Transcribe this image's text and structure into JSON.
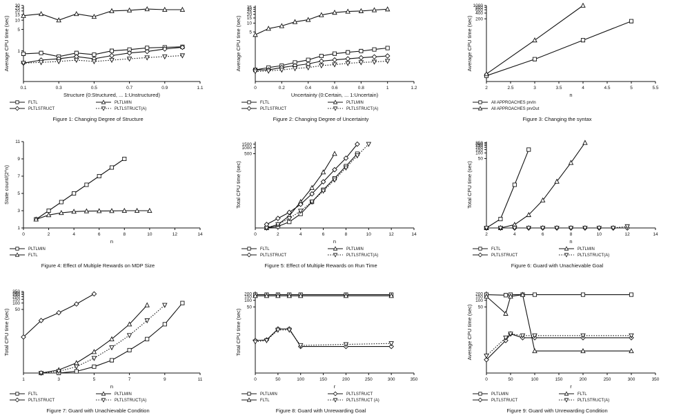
{
  "chart_data": [
    {
      "type": "line",
      "title": "Figure 1: Changing Degree of Structure",
      "xlabel": "Structure (0:Structured, ... 1:Unstructured)",
      "ylabel": "Average CPU time (sec)",
      "xlim": [
        0.1,
        1.1
      ],
      "xticks": [
        "0.1",
        "0.3",
        "0.5",
        "0.7",
        "0.9",
        "1.1"
      ],
      "yscale": "log",
      "ylim": [
        0.1,
        30
      ],
      "yticks": [
        "1",
        "5",
        "10",
        "15",
        "20",
        "25",
        "30"
      ],
      "x": [
        0.1,
        0.2,
        0.3,
        0.4,
        0.5,
        0.6,
        0.7,
        0.8,
        0.9,
        1.0
      ],
      "series": [
        {
          "name": "FLTL",
          "marker": "square",
          "dash": "solid",
          "values": [
            0.8,
            0.85,
            0.65,
            0.85,
            0.75,
            1.0,
            1.1,
            1.25,
            1.3,
            1.35
          ]
        },
        {
          "name": "PLTLMIN",
          "marker": "triangle-up",
          "dash": "solid",
          "values": [
            14,
            16,
            10,
            16,
            13,
            20,
            21,
            23,
            22,
            22
          ]
        },
        {
          "name": "PLTLSTRUCT",
          "marker": "diamond",
          "dash": "solid",
          "values": [
            0.4,
            0.5,
            0.55,
            0.65,
            0.55,
            0.7,
            0.85,
            0.95,
            1.15,
            1.3
          ]
        },
        {
          "name": "PLTLSTRUCT(A)",
          "marker": "triangle-down",
          "dash": "dotted",
          "values": [
            0.4,
            0.42,
            0.45,
            0.5,
            0.45,
            0.5,
            0.55,
            0.6,
            0.65,
            0.7
          ]
        }
      ],
      "legend_rows": [
        [
          "FLTL",
          "PLTLMIN"
        ],
        [
          "PLTLSTRUCT",
          "PLTLSTRUCT(A)"
        ]
      ]
    },
    {
      "type": "line",
      "title": "Figure 2: Changing Degree of Uncertainty",
      "xlabel": "Uncertainty (0:Certain, ... 1:Uncertain)",
      "ylabel": "Average CPU time (sec)",
      "xlim": [
        0,
        1.2
      ],
      "xticks": [
        "0",
        "0.2",
        "0.4",
        "0.6",
        "0.8",
        "1",
        "1.2"
      ],
      "yscale": "log",
      "ylim": [
        0.1,
        40
      ],
      "yticks": [
        "5",
        "10",
        "15",
        "20",
        "25",
        "30",
        "35"
      ],
      "x": [
        0,
        0.1,
        0.2,
        0.3,
        0.4,
        0.5,
        0.6,
        0.7,
        0.8,
        0.9,
        1.0
      ],
      "series": [
        {
          "name": "FLTL",
          "marker": "square",
          "dash": "solid",
          "values": [
            0.25,
            0.3,
            0.35,
            0.45,
            0.55,
            0.75,
            0.9,
            1.0,
            1.1,
            1.25,
            1.4
          ]
        },
        {
          "name": "PLTLMIN",
          "marker": "triangle-up",
          "dash": "solid",
          "values": [
            4,
            6.5,
            8,
            11,
            13,
            19,
            23,
            25,
            26,
            28,
            30
          ]
        },
        {
          "name": "PLTLSTRUCT",
          "marker": "diamond",
          "dash": "solid",
          "values": [
            0.25,
            0.25,
            0.3,
            0.35,
            0.4,
            0.5,
            0.55,
            0.6,
            0.65,
            0.7,
            0.75
          ]
        },
        {
          "name": "PLTLSTRUCT(A)",
          "marker": "triangle-down",
          "dash": "dotted",
          "values": [
            0.22,
            0.23,
            0.25,
            0.28,
            0.3,
            0.35,
            0.38,
            0.42,
            0.45,
            0.47,
            0.5
          ]
        }
      ],
      "legend_rows": [
        [
          "FLTL",
          "PLTLMIN"
        ],
        [
          "PLTLSTRUCT",
          "PLTLSTRUCT(A)"
        ]
      ]
    },
    {
      "type": "line",
      "title": "Figure 3: Changing the syntax",
      "xlabel": "n",
      "ylabel": "Average CPU time (sec)",
      "xlim": [
        2,
        5.5
      ],
      "xticks": [
        "2",
        "2.5",
        "3",
        "3.5",
        "4",
        "4.5",
        "5",
        "5.5"
      ],
      "yscale": "log",
      "ylim": [
        0.1,
        1000
      ],
      "yticks": [
        "200",
        "400",
        "600",
        "800",
        "1000"
      ],
      "x": [
        2,
        3,
        4,
        5
      ],
      "series": [
        {
          "name": "All APPROACHES prvIn",
          "marker": "square",
          "dash": "solid",
          "values": [
            0.2,
            1.5,
            15,
            150
          ]
        },
        {
          "name": "All APPROACHES prvOut",
          "marker": "triangle-up",
          "dash": "solid",
          "x": [
            2,
            3,
            4
          ],
          "values": [
            0.25,
            15,
            1000
          ]
        }
      ],
      "legend_rows": [
        [
          "All APPROACHES prvIn"
        ],
        [
          "All APPROACHES prvOut"
        ]
      ]
    },
    {
      "type": "line",
      "title": "Figure 4: Effect of Multiple Rewards on MDP Size",
      "xlabel": "n",
      "ylabel": "State count/(2^n)",
      "xlim": [
        0,
        14
      ],
      "xticks": [
        "0",
        "2",
        "4",
        "6",
        "8",
        "10",
        "12",
        "14"
      ],
      "ylim": [
        1,
        11
      ],
      "yticks": [
        "1",
        "3",
        "5",
        "7",
        "9",
        "11"
      ],
      "series": [
        {
          "name": "PLTLMIN",
          "marker": "square",
          "dash": "solid",
          "x": [
            1,
            2,
            3,
            4,
            5,
            6,
            7,
            8
          ],
          "values": [
            2,
            3,
            4,
            5,
            6,
            7,
            8,
            9
          ]
        },
        {
          "name": "FLTL",
          "marker": "triangle-up",
          "dash": "solid",
          "x": [
            1,
            2,
            3,
            4,
            5,
            6,
            7,
            8,
            9,
            10
          ],
          "values": [
            2,
            2.5,
            2.75,
            2.9,
            2.95,
            2.97,
            2.98,
            3,
            3,
            3
          ]
        }
      ],
      "legend_rows": [
        [
          "PLTLMIN"
        ],
        [
          "FLTL"
        ]
      ]
    },
    {
      "type": "line",
      "title": "Figure 5: Effect of Multiple Rewards on Run Time",
      "xlabel": "n",
      "ylabel": "Total CPU time (sec)",
      "xlim": [
        0,
        14
      ],
      "xticks": [
        "0",
        "2",
        "4",
        "6",
        "8",
        "10",
        "12",
        "14"
      ],
      "yscale": "log",
      "ylim": [
        0.1,
        2000
      ],
      "yticks": [
        "500",
        "1000",
        "1500"
      ],
      "series": [
        {
          "name": "FLTL",
          "marker": "square",
          "dash": "solid",
          "x": [
            1,
            2,
            3,
            4,
            5,
            6,
            7,
            8,
            9
          ],
          "values": [
            0.1,
            0.12,
            0.2,
            0.5,
            2,
            8,
            30,
            120,
            500
          ]
        },
        {
          "name": "PLTLMIN",
          "marker": "triangle-up",
          "dash": "solid",
          "x": [
            1,
            2,
            3,
            4,
            5,
            6,
            7
          ],
          "values": [
            0.1,
            0.15,
            0.4,
            2,
            10,
            60,
            500
          ]
        },
        {
          "name": "PLTLSTRUCT",
          "marker": "diamond",
          "dash": "solid",
          "x": [
            1,
            2,
            3,
            4,
            5,
            6,
            7,
            8,
            9
          ],
          "values": [
            0.15,
            0.3,
            0.6,
            1.5,
            5,
            20,
            80,
            300,
            1500
          ]
        },
        {
          "name": "PLTLSTRUCT(A)",
          "marker": "triangle-down",
          "dash": "dotted",
          "x": [
            1,
            2,
            3,
            4,
            5,
            6,
            7,
            8,
            9,
            10
          ],
          "values": [
            0.1,
            0.15,
            0.3,
            0.7,
            2,
            7,
            25,
            100,
            400,
            1500
          ]
        }
      ],
      "legend_rows": [
        [
          "FLTL",
          "PLTLMIN"
        ],
        [
          "PLTLSTRUCT",
          "PLTLSTRUCT(A)"
        ]
      ]
    },
    {
      "type": "line",
      "title": "Figure 6: Guard with Unachievable Goal",
      "xlabel": "n",
      "ylabel": "Total CPU time (sec)",
      "xlim": [
        2,
        14
      ],
      "xticks": [
        "2",
        "4",
        "6",
        "8",
        "10",
        "12",
        "14"
      ],
      "yscale": "log",
      "ylim": [
        0.01,
        400
      ],
      "yticks": [
        "50",
        "100",
        "150",
        "200",
        "250",
        "300",
        "350"
      ],
      "series": [
        {
          "name": "FLTL",
          "marker": "square",
          "dash": "solid",
          "x": [
            2,
            3,
            4,
            5
          ],
          "values": [
            0.01,
            0.03,
            2,
            150
          ]
        },
        {
          "name": "PLTLMIN",
          "marker": "triangle-up",
          "dash": "solid",
          "x": [
            2,
            3,
            4,
            5,
            6,
            7,
            8,
            9
          ],
          "values": [
            0.01,
            0.01,
            0.015,
            0.05,
            0.3,
            3,
            30,
            350
          ]
        },
        {
          "name": "PLTLSTRUCT",
          "marker": "diamond",
          "dash": "solid",
          "x": [
            2,
            3,
            4,
            5,
            6,
            7,
            8,
            9,
            10,
            11,
            12
          ],
          "values": [
            0.01,
            0.01,
            0.01,
            0.01,
            0.01,
            0.01,
            0.01,
            0.01,
            0.01,
            0.01,
            0.01
          ]
        },
        {
          "name": "PLTLSTRUCT(A)",
          "marker": "triangle-down",
          "dash": "dotted",
          "x": [
            2,
            3,
            4,
            5,
            6,
            7,
            8,
            9,
            10,
            11,
            12
          ],
          "values": [
            0.01,
            0.01,
            0.01,
            0.01,
            0.01,
            0.01,
            0.01,
            0.01,
            0.01,
            0.01,
            0.012
          ]
        }
      ],
      "legend_rows": [
        [
          "FLTL",
          "PLTLMIN"
        ],
        [
          "PLTLSTRUCT",
          "PLTLSTRUCT(A)"
        ]
      ]
    },
    {
      "type": "line",
      "title": "Figure 7: Guard with Unachievable Condition",
      "xlabel": "n",
      "ylabel": "Total CPU time (sec)",
      "xlim": [
        1,
        11
      ],
      "xticks": [
        "1",
        "3",
        "5",
        "7",
        "9",
        "11"
      ],
      "yscale": "log",
      "ylim": [
        0.05,
        350
      ],
      "yticks": [
        "50",
        "100",
        "150",
        "200",
        "250",
        "300",
        "350"
      ],
      "series": [
        {
          "name": "FLTL",
          "marker": "square",
          "dash": "solid",
          "x": [
            2,
            3,
            4,
            5,
            6,
            7,
            8,
            9,
            10
          ],
          "values": [
            0.05,
            0.05,
            0.06,
            0.1,
            0.2,
            0.6,
            2,
            10,
            100
          ]
        },
        {
          "name": "PLTLMIN",
          "marker": "triangle-up",
          "dash": "solid",
          "x": [
            2,
            3,
            4,
            5,
            6,
            7,
            8
          ],
          "values": [
            0.05,
            0.07,
            0.15,
            0.5,
            2,
            10,
            80
          ]
        },
        {
          "name": "PLTLSTRUCT",
          "marker": "diamond",
          "dash": "solid",
          "x": [
            1,
            2,
            3,
            4,
            5
          ],
          "values": [
            2.5,
            15,
            35,
            90,
            270
          ]
        },
        {
          "name": "PLTLSTRUCT(A)",
          "marker": "triangle-down",
          "dash": "dotted",
          "x": [
            2,
            3,
            4,
            5,
            6,
            7,
            8,
            9
          ],
          "values": [
            0.05,
            0.06,
            0.1,
            0.25,
            0.8,
            3,
            15,
            80
          ]
        }
      ],
      "legend_rows": [
        [
          "FLTL",
          "PLTLMIN"
        ],
        [
          "PLTLSTRUCT",
          "PLTLSTRUCT(A)"
        ]
      ]
    },
    {
      "type": "line",
      "title": "Figure 8: Guard with Unrewarding Goal",
      "xlabel": "r",
      "ylabel": "Total CPU time (sec)",
      "xlim": [
        0,
        350
      ],
      "xticks": [
        "0",
        "50",
        "100",
        "150",
        "200",
        "250",
        "300",
        "350"
      ],
      "yscale": "log",
      "ylim": [
        0.05,
        250
      ],
      "yticks": [
        "50",
        "100",
        "150",
        "200"
      ],
      "x": [
        0,
        25,
        50,
        75,
        100,
        200,
        300
      ],
      "series": [
        {
          "name": "PLTLMIN",
          "marker": "square",
          "dash": "solid",
          "values": [
            180,
            180,
            180,
            180,
            180,
            180,
            180
          ]
        },
        {
          "name": "FLTL",
          "marker": "triangle-up",
          "dash": "solid",
          "values": [
            160,
            160,
            160,
            160,
            160,
            160,
            160
          ]
        },
        {
          "name": "PLTLSTRUCT",
          "marker": "diamond",
          "dash": "solid",
          "values": [
            1.5,
            1.6,
            5,
            5,
            0.8,
            0.8,
            0.8
          ]
        },
        {
          "name": "PLTLSTRUCT (A)",
          "marker": "triangle-down",
          "dash": "dotted",
          "values": [
            1.3,
            1.5,
            4.5,
            4.5,
            0.9,
            1.0,
            1.1
          ]
        }
      ],
      "legend_rows": [
        [
          "PLTLMIN",
          "PLTLSTRUCT"
        ],
        [
          "FLTL",
          "PLTLSTRUCT (A)"
        ]
      ]
    },
    {
      "type": "line",
      "title": "Figure 9: Guard with Unrewarding Condition",
      "xlabel": "r",
      "ylabel": "Average CPU time (sec)",
      "xlim": [
        0,
        350
      ],
      "xticks": [
        "0",
        "50",
        "100",
        "150",
        "200",
        "250",
        "300",
        "350"
      ],
      "yscale": "log",
      "ylim": [
        0.05,
        250
      ],
      "yticks": [
        "50",
        "100",
        "150",
        "200"
      ],
      "x": [
        0,
        40,
        50,
        75,
        100,
        200,
        300
      ],
      "series": [
        {
          "name": "PLTLMIN",
          "marker": "square",
          "dash": "solid",
          "values": [
            180,
            170,
            180,
            180,
            180,
            180,
            180
          ]
        },
        {
          "name": "FLTL",
          "marker": "triangle-up",
          "dash": "solid",
          "values": [
            150,
            25,
            150,
            180,
            0.5,
            0.5,
            0.5
          ]
        },
        {
          "name": "PLTLSTRUCT",
          "marker": "diamond",
          "dash": "solid",
          "values": [
            0.2,
            1.5,
            3,
            2,
            2,
            2,
            2
          ]
        },
        {
          "name": "PLTLSTRUCT(A)",
          "marker": "triangle-down",
          "dash": "dotted",
          "values": [
            0.3,
            2,
            3,
            2.5,
            2.5,
            2.5,
            2.5
          ]
        }
      ],
      "legend_rows": [
        [
          "PLTLMIN",
          "FLTL"
        ],
        [
          "PLTLSTRUCT",
          "PLTLSTRUCT(A)"
        ]
      ]
    }
  ]
}
